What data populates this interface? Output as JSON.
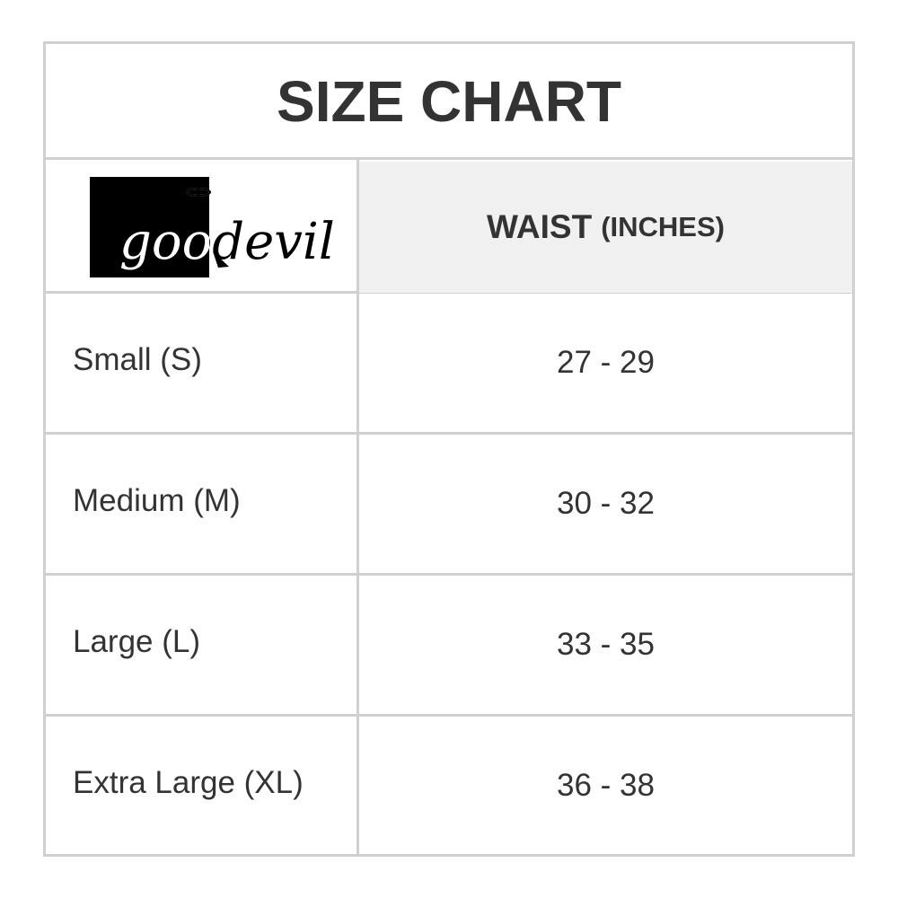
{
  "title": "SIZE CHART",
  "logo": "goodevil",
  "header": {
    "label": "WAIST",
    "unit": "(INCHES)"
  },
  "table": {
    "rows": [
      [
        "Small (S)",
        "27 - 29"
      ],
      [
        "Medium (M)",
        "30 - 32"
      ],
      [
        "Large (L)",
        "33 - 35"
      ],
      [
        "Extra Large (XL)",
        "36 - 38"
      ]
    ]
  }
}
